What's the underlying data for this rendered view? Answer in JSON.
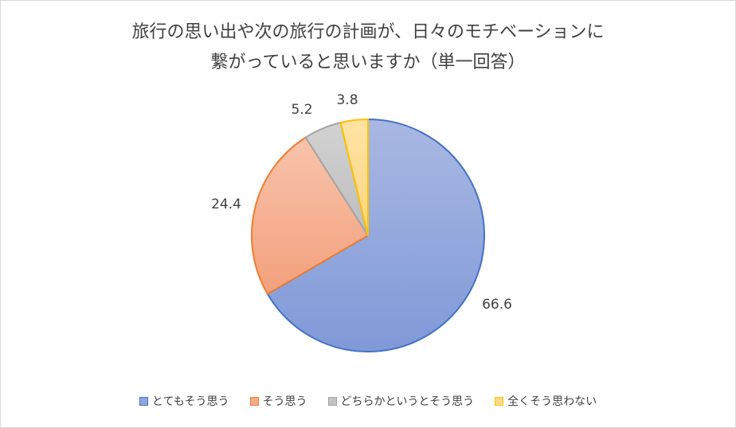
{
  "chart_data": {
    "type": "pie",
    "title_lines": [
      "旅行の思い出や次の旅行の計画が、日々のモチベーションに",
      "繋がっていると思いますか（単一回答）"
    ],
    "categories": [
      "とてもそう思う",
      "そう思う",
      "どちらかというとそう思う",
      "全くそう思わない"
    ],
    "values": [
      66.6,
      24.4,
      5.2,
      3.8
    ],
    "value_labels": [
      "66.6",
      "24.4",
      "5.2",
      "3.8"
    ],
    "colors": {
      "fill": [
        "#8fa7dd",
        "#f5ab8a",
        "#c3c3c3",
        "#fdd988"
      ],
      "border": [
        "#4472c4",
        "#ed7d31",
        "#a5a5a5",
        "#ffc000"
      ]
    },
    "start": "12 o'clock, clockwise",
    "legend_position": "bottom"
  }
}
